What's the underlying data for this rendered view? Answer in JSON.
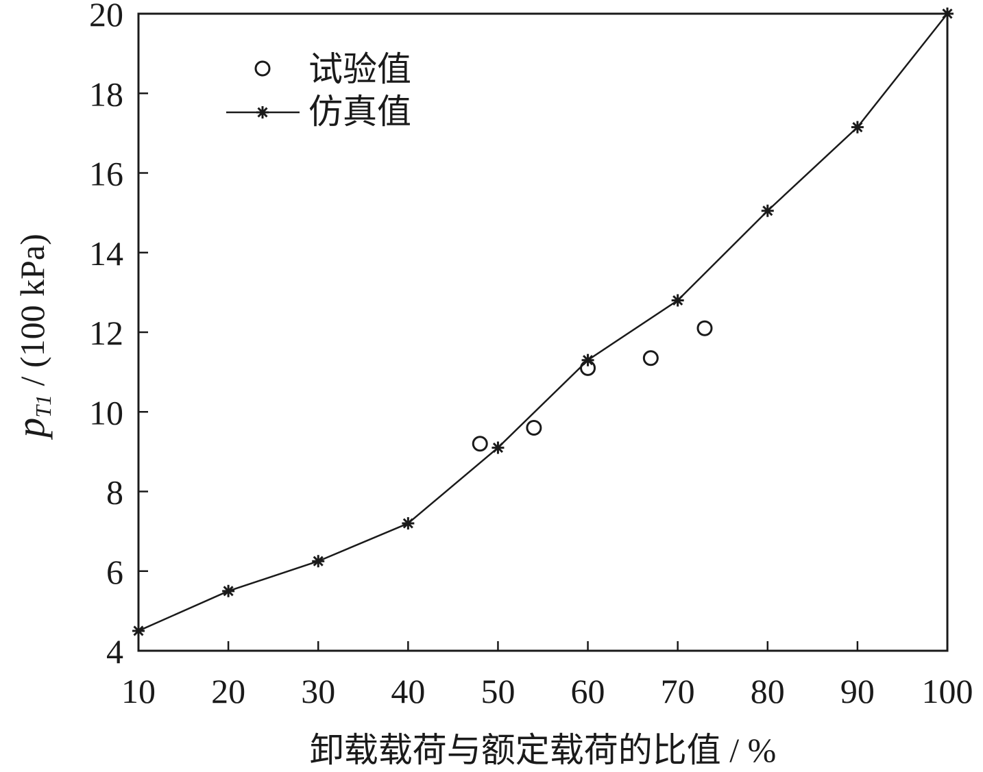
{
  "chart_data": {
    "type": "line",
    "title": "",
    "xlabel": "卸载载荷与额定载荷的比值 / %",
    "ylabel": {
      "var": "p",
      "sub": "T1",
      "rest": " / (100 kPa)"
    },
    "xlim": [
      10,
      100
    ],
    "ylim": [
      4,
      20
    ],
    "xticks": [
      "10",
      "20",
      "30",
      "40",
      "50",
      "60",
      "70",
      "80",
      "90",
      "100"
    ],
    "yticks": [
      "4",
      "6",
      "8",
      "10",
      "12",
      "14",
      "16",
      "18",
      "20"
    ],
    "grid": false,
    "legend_position": "top-left",
    "series": [
      {
        "name": "试验值",
        "style": "circle-markers",
        "color": "#1a1a1a",
        "x": [
          48,
          54,
          60,
          67,
          73
        ],
        "y": [
          9.2,
          9.6,
          11.1,
          11.35,
          12.1
        ]
      },
      {
        "name": "仿真值",
        "style": "line-star-markers",
        "color": "#1a1a1a",
        "x": [
          10,
          20,
          30,
          40,
          50,
          60,
          70,
          80,
          90,
          100
        ],
        "y": [
          4.5,
          5.5,
          6.25,
          7.2,
          9.1,
          11.3,
          12.8,
          15.05,
          17.15,
          20
        ]
      }
    ]
  }
}
